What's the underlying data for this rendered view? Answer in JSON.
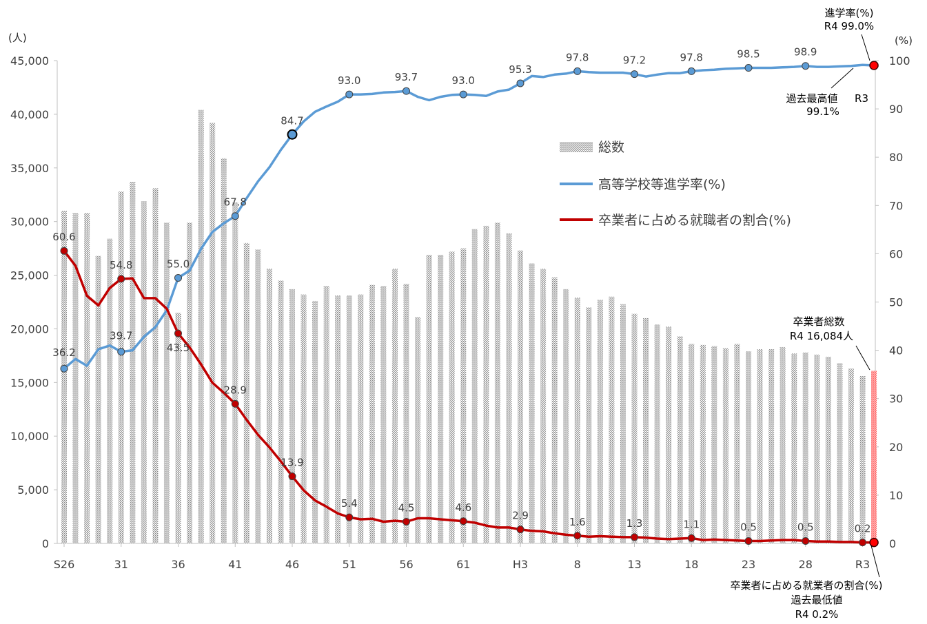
{
  "chart_data": {
    "type": "bar+line",
    "axes": {
      "left_unit": "(人)",
      "right_unit": "(%)",
      "left_ylim": [
        0,
        45000
      ],
      "right_ylim": [
        0,
        100
      ],
      "left_ticks": [
        "0",
        "5,000",
        "10,000",
        "15,000",
        "20,000",
        "25,000",
        "30,000",
        "35,000",
        "40,000",
        "45,000"
      ],
      "right_ticks": [
        "0",
        "10",
        "20",
        "30",
        "40",
        "50",
        "60",
        "70",
        "80",
        "90",
        "100"
      ],
      "x_ticks": [
        "S26",
        "31",
        "36",
        "41",
        "46",
        "51",
        "56",
        "61",
        "H3",
        "8",
        "13",
        "18",
        "23",
        "28",
        "R3"
      ],
      "grid": false
    },
    "years": [
      "S26",
      "S27",
      "S28",
      "S29",
      "S30",
      "S31",
      "S32",
      "S33",
      "S34",
      "S35",
      "S36",
      "S37",
      "S38",
      "S39",
      "S40",
      "S41",
      "S42",
      "S43",
      "S44",
      "S45",
      "S46",
      "S47",
      "S48",
      "S49",
      "S50",
      "S51",
      "S52",
      "S53",
      "S54",
      "S55",
      "S56",
      "S57",
      "S58",
      "S59",
      "S60",
      "S61",
      "S62",
      "S63",
      "H1",
      "H2",
      "H3",
      "H4",
      "H5",
      "H6",
      "H7",
      "H8",
      "H9",
      "H10",
      "H11",
      "H12",
      "H13",
      "H14",
      "H15",
      "H16",
      "H17",
      "H18",
      "H19",
      "H20",
      "H21",
      "H22",
      "H23",
      "H24",
      "H25",
      "H26",
      "H27",
      "H28",
      "H29",
      "H30",
      "R1",
      "R2",
      "R3",
      "R4"
    ],
    "series": [
      {
        "name": "総数",
        "kind": "bar",
        "axis": "left",
        "color": "#b3b3b3",
        "values": [
          31000,
          30800,
          30800,
          26800,
          28400,
          32800,
          33700,
          31900,
          33100,
          29900,
          21500,
          29900,
          40400,
          39200,
          35900,
          31800,
          28000,
          27400,
          25600,
          24500,
          23700,
          23200,
          22600,
          24000,
          23100,
          23100,
          23200,
          24100,
          24000,
          25600,
          24200,
          21100,
          26900,
          26900,
          27200,
          27500,
          29300,
          29600,
          29900,
          28900,
          27300,
          26100,
          25600,
          24800,
          23700,
          22900,
          22000,
          22700,
          23000,
          22300,
          21400,
          21000,
          20400,
          20200,
          19300,
          18600,
          18500,
          18400,
          18200,
          18600,
          17900,
          18100,
          18100,
          18300,
          17700,
          17800,
          17600,
          17400,
          16800,
          16300,
          15600,
          16084
        ]
      },
      {
        "name": "高等学校等進学率(%)",
        "kind": "line",
        "axis": "right",
        "color": "#5b9bd5",
        "values": [
          36.2,
          38.2,
          36.8,
          40.2,
          41.0,
          39.7,
          40.0,
          42.8,
          44.8,
          48.3,
          55.0,
          56.5,
          61.0,
          64.5,
          66.3,
          67.8,
          71.5,
          75.0,
          77.9,
          81.5,
          84.7,
          87.4,
          89.4,
          90.5,
          91.5,
          93.0,
          93.0,
          93.1,
          93.4,
          93.5,
          93.7,
          92.5,
          91.8,
          92.5,
          92.9,
          93.0,
          92.9,
          92.7,
          93.6,
          94.0,
          95.3,
          96.8,
          96.6,
          97.1,
          97.3,
          97.8,
          97.6,
          97.5,
          97.5,
          97.5,
          97.2,
          96.7,
          97.1,
          97.4,
          97.4,
          97.8,
          98.0,
          98.1,
          98.3,
          98.4,
          98.5,
          98.5,
          98.5,
          98.6,
          98.7,
          98.9,
          98.7,
          98.7,
          98.8,
          98.9,
          99.1,
          99.0
        ],
        "labeled": [
          [
            0,
            "36.2"
          ],
          [
            5,
            "39.7"
          ],
          [
            10,
            "55.0"
          ],
          [
            15,
            "67.8"
          ],
          [
            20,
            "84.7"
          ],
          [
            25,
            "93.0"
          ],
          [
            30,
            "93.7"
          ],
          [
            35,
            "93.0"
          ],
          [
            40,
            "95.3"
          ],
          [
            45,
            "97.8"
          ],
          [
            50,
            "97.2"
          ],
          [
            55,
            "97.8"
          ],
          [
            60,
            "98.5"
          ],
          [
            65,
            "98.9"
          ]
        ]
      },
      {
        "name": "卒業者に占める就職者の割合(%)",
        "kind": "line",
        "axis": "right",
        "color": "#c00000",
        "values": [
          60.6,
          57.5,
          51.3,
          49.3,
          52.9,
          54.8,
          54.9,
          50.8,
          50.8,
          48.6,
          43.5,
          40.6,
          37.1,
          33.3,
          31.2,
          28.9,
          25.6,
          22.5,
          19.9,
          17.0,
          13.9,
          11.0,
          8.9,
          7.6,
          6.2,
          5.4,
          5.0,
          5.1,
          4.5,
          4.7,
          4.5,
          5.2,
          5.2,
          5.0,
          4.8,
          4.6,
          4.3,
          3.7,
          3.3,
          3.3,
          2.9,
          2.6,
          2.5,
          2.1,
          1.8,
          1.6,
          1.4,
          1.5,
          1.4,
          1.3,
          1.3,
          1.2,
          1.0,
          0.9,
          1.0,
          1.1,
          0.7,
          0.8,
          0.7,
          0.6,
          0.5,
          0.5,
          0.6,
          0.7,
          0.7,
          0.5,
          0.4,
          0.4,
          0.3,
          0.3,
          0.2,
          0.2
        ],
        "labeled": [
          [
            0,
            "60.6"
          ],
          [
            5,
            "54.8"
          ],
          [
            10,
            "43.5"
          ],
          [
            15,
            "28.9"
          ],
          [
            20,
            "13.9"
          ],
          [
            25,
            "5.4"
          ],
          [
            30,
            "4.5"
          ],
          [
            35,
            "4.6"
          ],
          [
            40,
            "2.9"
          ],
          [
            45,
            "1.6"
          ],
          [
            50,
            "1.3"
          ],
          [
            55,
            "1.1"
          ],
          [
            60,
            "0.5"
          ],
          [
            65,
            "0.5"
          ],
          [
            70,
            "0.2"
          ]
        ]
      }
    ],
    "annotations": {
      "rate_top": {
        "title": "進学率(%)",
        "value": "R4 99.0%"
      },
      "rate_record": {
        "title": "過去最高値",
        "value": "99.1%",
        "year": "R3"
      },
      "total": {
        "title": "卒業者総数",
        "value": "R4 16,084人"
      },
      "employ": {
        "title": "卒業者に占める就業者の割合(%)",
        "sub": "過去最低値",
        "value": "R4 0.2%"
      }
    }
  }
}
